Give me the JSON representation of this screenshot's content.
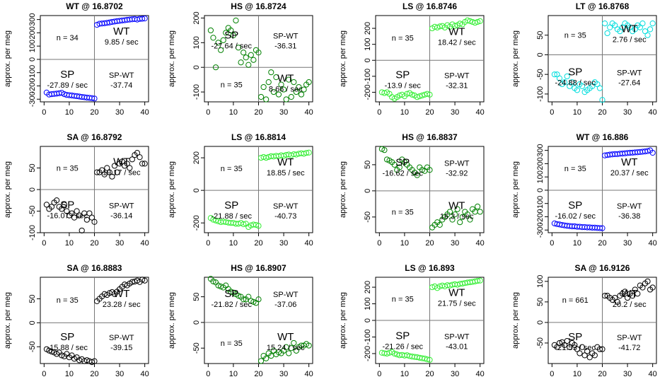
{
  "ylabel": "approx. per meg",
  "panels": [
    {
      "title": "WT @ 16.8702",
      "color": "#0000ff",
      "ylim": [
        -320,
        330
      ],
      "yticks": [
        -300,
        -200,
        -100,
        0,
        100,
        200,
        300
      ],
      "n_label": "n = 34",
      "sp_label": "SP",
      "sp_rate": "-27.89 / sec",
      "wt_label": "WT",
      "wt_rate": "9.85 / sec",
      "spwt_label": "SP-WT",
      "spwt_value": "-37.74",
      "sp_y": [
        -250,
        -265,
        -262,
        -260,
        -258,
        -255,
        -252,
        -262,
        -268,
        -270,
        -272,
        -275,
        -277,
        -280,
        -283,
        -285,
        -288,
        -290,
        -292,
        -295
      ],
      "wt_y": [
        260,
        268,
        270,
        272,
        275,
        278,
        282,
        285,
        288,
        290,
        293,
        295,
        298,
        300,
        302,
        304,
        300,
        305,
        306,
        308
      ]
    },
    {
      "title": "HS @ 16.8724",
      "color": "#008000",
      "ylim": [
        -140,
        210
      ],
      "yticks": [
        -100,
        0,
        100,
        200
      ],
      "n_label": "n = 35",
      "sp_label": "SP",
      "sp_rate": "-27.64 / sec",
      "wt_label": "WT",
      "wt_rate": "8.66 / sec",
      "spwt_label": "SP-WT",
      "spwt_value": "-36.31",
      "sp_y": [
        150,
        120,
        0,
        100,
        70,
        110,
        140,
        160,
        150,
        130,
        190,
        80,
        20,
        60,
        40,
        10,
        50,
        30,
        70,
        60
      ],
      "wt_y": [
        -120,
        -80,
        -130,
        -60,
        -20,
        -100,
        -40,
        -110,
        -70,
        -90,
        -130,
        -50,
        -120,
        -60,
        -100,
        -80,
        -110,
        -90,
        -70,
        -60
      ]
    },
    {
      "title": "LS @ 16.8746",
      "color": "#33ee33",
      "ylim": [
        -260,
        280
      ],
      "yticks": [
        -200,
        -100,
        0,
        100,
        200
      ],
      "n_label": "n = 35",
      "sp_label": "SP",
      "sp_rate": "-13.9 / sec",
      "wt_label": "WT",
      "wt_rate": "18.42 / sec",
      "spwt_label": "SP-WT",
      "spwt_value": "-32.31",
      "sp_y": [
        -200,
        -205,
        -200,
        -210,
        -230,
        -240,
        -230,
        -220,
        -215,
        -225,
        -210,
        -205,
        -215,
        -220,
        -230,
        -225,
        -220,
        -215,
        -210,
        -215
      ],
      "wt_y": [
        200,
        210,
        205,
        212,
        215,
        205,
        220,
        210,
        225,
        215,
        220,
        230,
        225,
        240,
        250,
        245,
        240,
        235,
        240,
        245
      ]
    },
    {
      "title": "LT @ 16.8768",
      "color": "#00dddd",
      "ylim": [
        -120,
        100
      ],
      "yticks": [
        -100,
        -50,
        0,
        50
      ],
      "n_label": "n = 35",
      "sp_label": "SP",
      "sp_rate": "-24.88 / sec",
      "wt_label": "WT",
      "wt_rate": "2.76 / sec",
      "spwt_label": "SP-WT",
      "spwt_value": "-27.64",
      "sp_y": [
        -50,
        -50,
        -60,
        -75,
        -70,
        -55,
        -80,
        -70,
        -85,
        -90,
        -75,
        -80,
        -95,
        -90,
        -85,
        -80,
        -70,
        -75,
        -85,
        -115
      ],
      "wt_y": [
        80,
        55,
        70,
        80,
        75,
        65,
        60,
        70,
        80,
        75,
        70,
        60,
        65,
        75,
        70,
        80,
        60,
        50,
        65,
        80
      ]
    },
    {
      "title": "SA @ 16.8792",
      "color": "#000000",
      "ylim": [
        -100,
        100
      ],
      "yticks": [
        -100,
        -50,
        0,
        50
      ],
      "n_label": "n = 35",
      "sp_label": "SP",
      "sp_rate": "-16.07 / sec",
      "wt_label": "WT",
      "wt_rate": "19.17 / sec",
      "spwt_label": "SP-WT",
      "spwt_value": "-36.14",
      "sp_y": [
        -35,
        -45,
        -40,
        -30,
        -25,
        -40,
        -45,
        -35,
        -50,
        -60,
        -55,
        -65,
        -50,
        -60,
        -95,
        -55,
        -70,
        -55,
        -65,
        -75
      ],
      "wt_y": [
        40,
        40,
        45,
        35,
        50,
        40,
        30,
        55,
        40,
        60,
        65,
        55,
        60,
        50,
        70,
        80,
        85,
        75,
        60,
        60
      ]
    },
    {
      "title": "LS @ 16.8814",
      "color": "#33ee33",
      "ylim": [
        -260,
        270
      ],
      "yticks": [
        -200,
        0,
        200
      ],
      "n_label": "n = 35",
      "sp_label": "SP",
      "sp_rate": "-21.88 / sec",
      "wt_label": "WT",
      "wt_rate": "18.85 / sec",
      "spwt_label": "SP-WT",
      "spwt_value": "-40.73",
      "sp_y": [
        -170,
        -180,
        -185,
        -190,
        -195,
        -192,
        -195,
        -198,
        -200,
        -200,
        -205,
        -205,
        -200,
        -208,
        -205,
        -225,
        -215,
        -210,
        -212,
        -218
      ],
      "wt_y": [
        200,
        205,
        200,
        205,
        210,
        208,
        212,
        210,
        215,
        212,
        218,
        220,
        215,
        222,
        220,
        225,
        228,
        225,
        230,
        232
      ]
    },
    {
      "title": "HS @ 16.8837",
      "color": "#008000",
      "ylim": [
        -80,
        85
      ],
      "yticks": [
        -50,
        0,
        50
      ],
      "n_label": "n = 35",
      "sp_label": "SP",
      "sp_rate": "-16.62 / sec",
      "wt_label": "WT",
      "wt_rate": "16.3 / sec",
      "spwt_label": "SP-WT",
      "spwt_value": "-32.92",
      "sp_y": [
        80,
        78,
        60,
        58,
        55,
        50,
        40,
        45,
        60,
        55,
        50,
        45,
        40,
        35,
        30,
        45,
        40,
        38,
        45,
        40
      ],
      "wt_y": [
        -70,
        -65,
        -60,
        -65,
        -55,
        -50,
        -45,
        -40,
        -55,
        -45,
        -35,
        -60,
        -50,
        -40,
        -45,
        -55,
        -35,
        -40,
        -30,
        -40
      ]
    },
    {
      "title": "WT @ 16.886",
      "color": "#0000ff",
      "ylim": [
        -320,
        330
      ],
      "yticks": [
        -300,
        -200,
        -100,
        0,
        100,
        200,
        300
      ],
      "n_label": "n = 35",
      "sp_label": "SP",
      "sp_rate": "-16.02 / sec",
      "wt_label": "WT",
      "wt_rate": "20.37 / sec",
      "spwt_label": "SP-WT",
      "spwt_value": "-36.38",
      "sp_y": [
        -250,
        -255,
        -258,
        -262,
        -265,
        -268,
        -270,
        -272,
        -272,
        -275,
        -275,
        -278,
        -278,
        -280,
        -280,
        -282,
        -282,
        -284,
        -285,
        -286
      ],
      "wt_y": [
        262,
        265,
        268,
        270,
        272,
        272,
        275,
        276,
        278,
        280,
        282,
        283,
        285,
        286,
        288,
        290,
        292,
        295,
        300,
        282
      ]
    },
    {
      "title": "SA @ 16.8883",
      "color": "#000000",
      "ylim": [
        -85,
        95
      ],
      "yticks": [
        -50,
        0,
        50
      ],
      "n_label": "n = 35",
      "sp_label": "SP",
      "sp_rate": "-15.88 / sec",
      "wt_label": "WT",
      "wt_rate": "23.28 / sec",
      "spwt_label": "SP-WT",
      "spwt_value": "-39.15",
      "sp_y": [
        -55,
        -58,
        -60,
        -62,
        -65,
        -62,
        -68,
        -70,
        -65,
        -72,
        -68,
        -75,
        -72,
        -78,
        -76,
        -80,
        -78,
        -80,
        -82,
        -80
      ],
      "wt_y": [
        45,
        50,
        55,
        60,
        58,
        62,
        64,
        60,
        65,
        70,
        75,
        80,
        78,
        82,
        85,
        86,
        88,
        85,
        90,
        88
      ]
    },
    {
      "title": "HS @ 16.8907",
      "color": "#008000",
      "ylim": [
        -80,
        88
      ],
      "yticks": [
        -50,
        0,
        50
      ],
      "n_label": "n = 35",
      "sp_label": "SP",
      "sp_rate": "-21.82 / sec",
      "wt_label": "WT",
      "wt_rate": "15.24 / sec",
      "spwt_label": "SP-WT",
      "spwt_value": "-37.06",
      "sp_y": [
        85,
        80,
        78,
        72,
        70,
        68,
        72,
        65,
        60,
        58,
        55,
        52,
        50,
        45,
        45,
        50,
        42,
        40,
        38,
        45
      ],
      "wt_y": [
        -75,
        -65,
        -70,
        -60,
        -65,
        -55,
        -62,
        -58,
        -60,
        -55,
        -48,
        -60,
        -50,
        -40,
        -55,
        -48,
        -45,
        -45,
        -42,
        -45
      ]
    },
    {
      "title": "LS @ 16.893",
      "color": "#33ee33",
      "ylim": [
        -260,
        260
      ],
      "yticks": [
        -200,
        -100,
        0,
        100,
        200
      ],
      "n_label": "n = 35",
      "sp_label": "SP",
      "sp_rate": "-21.26 / sec",
      "wt_label": "WT",
      "wt_rate": "21.75 / sec",
      "spwt_label": "SP-WT",
      "spwt_value": "-43.01",
      "sp_y": [
        -195,
        -198,
        -200,
        -195,
        -190,
        -200,
        -205,
        -210,
        -208,
        -212,
        -210,
        -215,
        -218,
        -220,
        -222,
        -225,
        -228,
        -230,
        -235,
        -238
      ],
      "wt_y": [
        200,
        205,
        195,
        205,
        210,
        205,
        212,
        210,
        215,
        218,
        215,
        220,
        222,
        225,
        228,
        230,
        232,
        235,
        238,
        240
      ]
    },
    {
      "title": "SA @ 16.9126",
      "color": "#000000",
      "ylim": [
        -100,
        110
      ],
      "yticks": [
        -50,
        0,
        50,
        100
      ],
      "n_label": "n = 661",
      "sp_label": "SP",
      "sp_rate": "-21.53 / sec",
      "wt_label": "WT",
      "wt_rate": "20.2 / sec",
      "spwt_label": "SP-WT",
      "spwt_value": "-41.72",
      "sp_y": [
        -55,
        -60,
        -50,
        -48,
        -55,
        -45,
        -60,
        -50,
        -55,
        -65,
        -75,
        -60,
        -80,
        -70,
        -85,
        -75,
        -80,
        -60,
        -65,
        -65
      ],
      "wt_y": [
        65,
        65,
        60,
        55,
        60,
        50,
        65,
        70,
        75,
        60,
        70,
        65,
        80,
        70,
        90,
        85,
        95,
        100,
        80,
        85
      ]
    }
  ],
  "chart_data": {
    "type": "scatter",
    "note_xlim": [
      0,
      40
    ],
    "xticks": [
      0,
      10,
      20,
      30,
      40
    ],
    "ylabel": "approx. per meg"
  }
}
